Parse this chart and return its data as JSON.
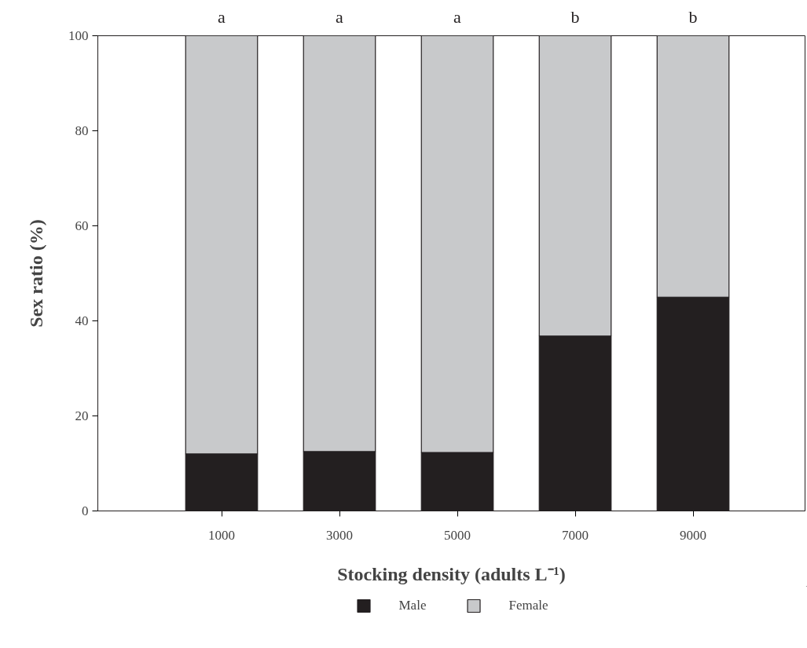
{
  "chart_data": {
    "type": "bar",
    "stacked": true,
    "xlabel": "Stocking density (adults L⁻¹)",
    "ylabel": "Sex ratio (%)",
    "categories": [
      "1000",
      "3000",
      "5000",
      "7000",
      "9000"
    ],
    "series": [
      {
        "name": "Male",
        "color": "#231f20",
        "values": [
          12,
          12.5,
          12.3,
          36.8,
          45
        ]
      },
      {
        "name": "Female",
        "color": "#c8c9cb",
        "values": [
          88,
          87.5,
          87.7,
          63.2,
          55
        ]
      }
    ],
    "ylim": [
      0,
      100
    ],
    "yticks": [
      0,
      20,
      40,
      60,
      80,
      100
    ],
    "annotations": [
      {
        "text": "a",
        "x": "1000",
        "y": 100
      },
      {
        "text": "a",
        "x": "3000",
        "y": 100
      },
      {
        "text": "a",
        "x": "5000",
        "y": 100
      },
      {
        "text": "b",
        "x": "7000",
        "y": 100
      },
      {
        "text": "b",
        "x": "9000",
        "y": 100
      }
    ],
    "grid": false,
    "legend": "bottom"
  }
}
